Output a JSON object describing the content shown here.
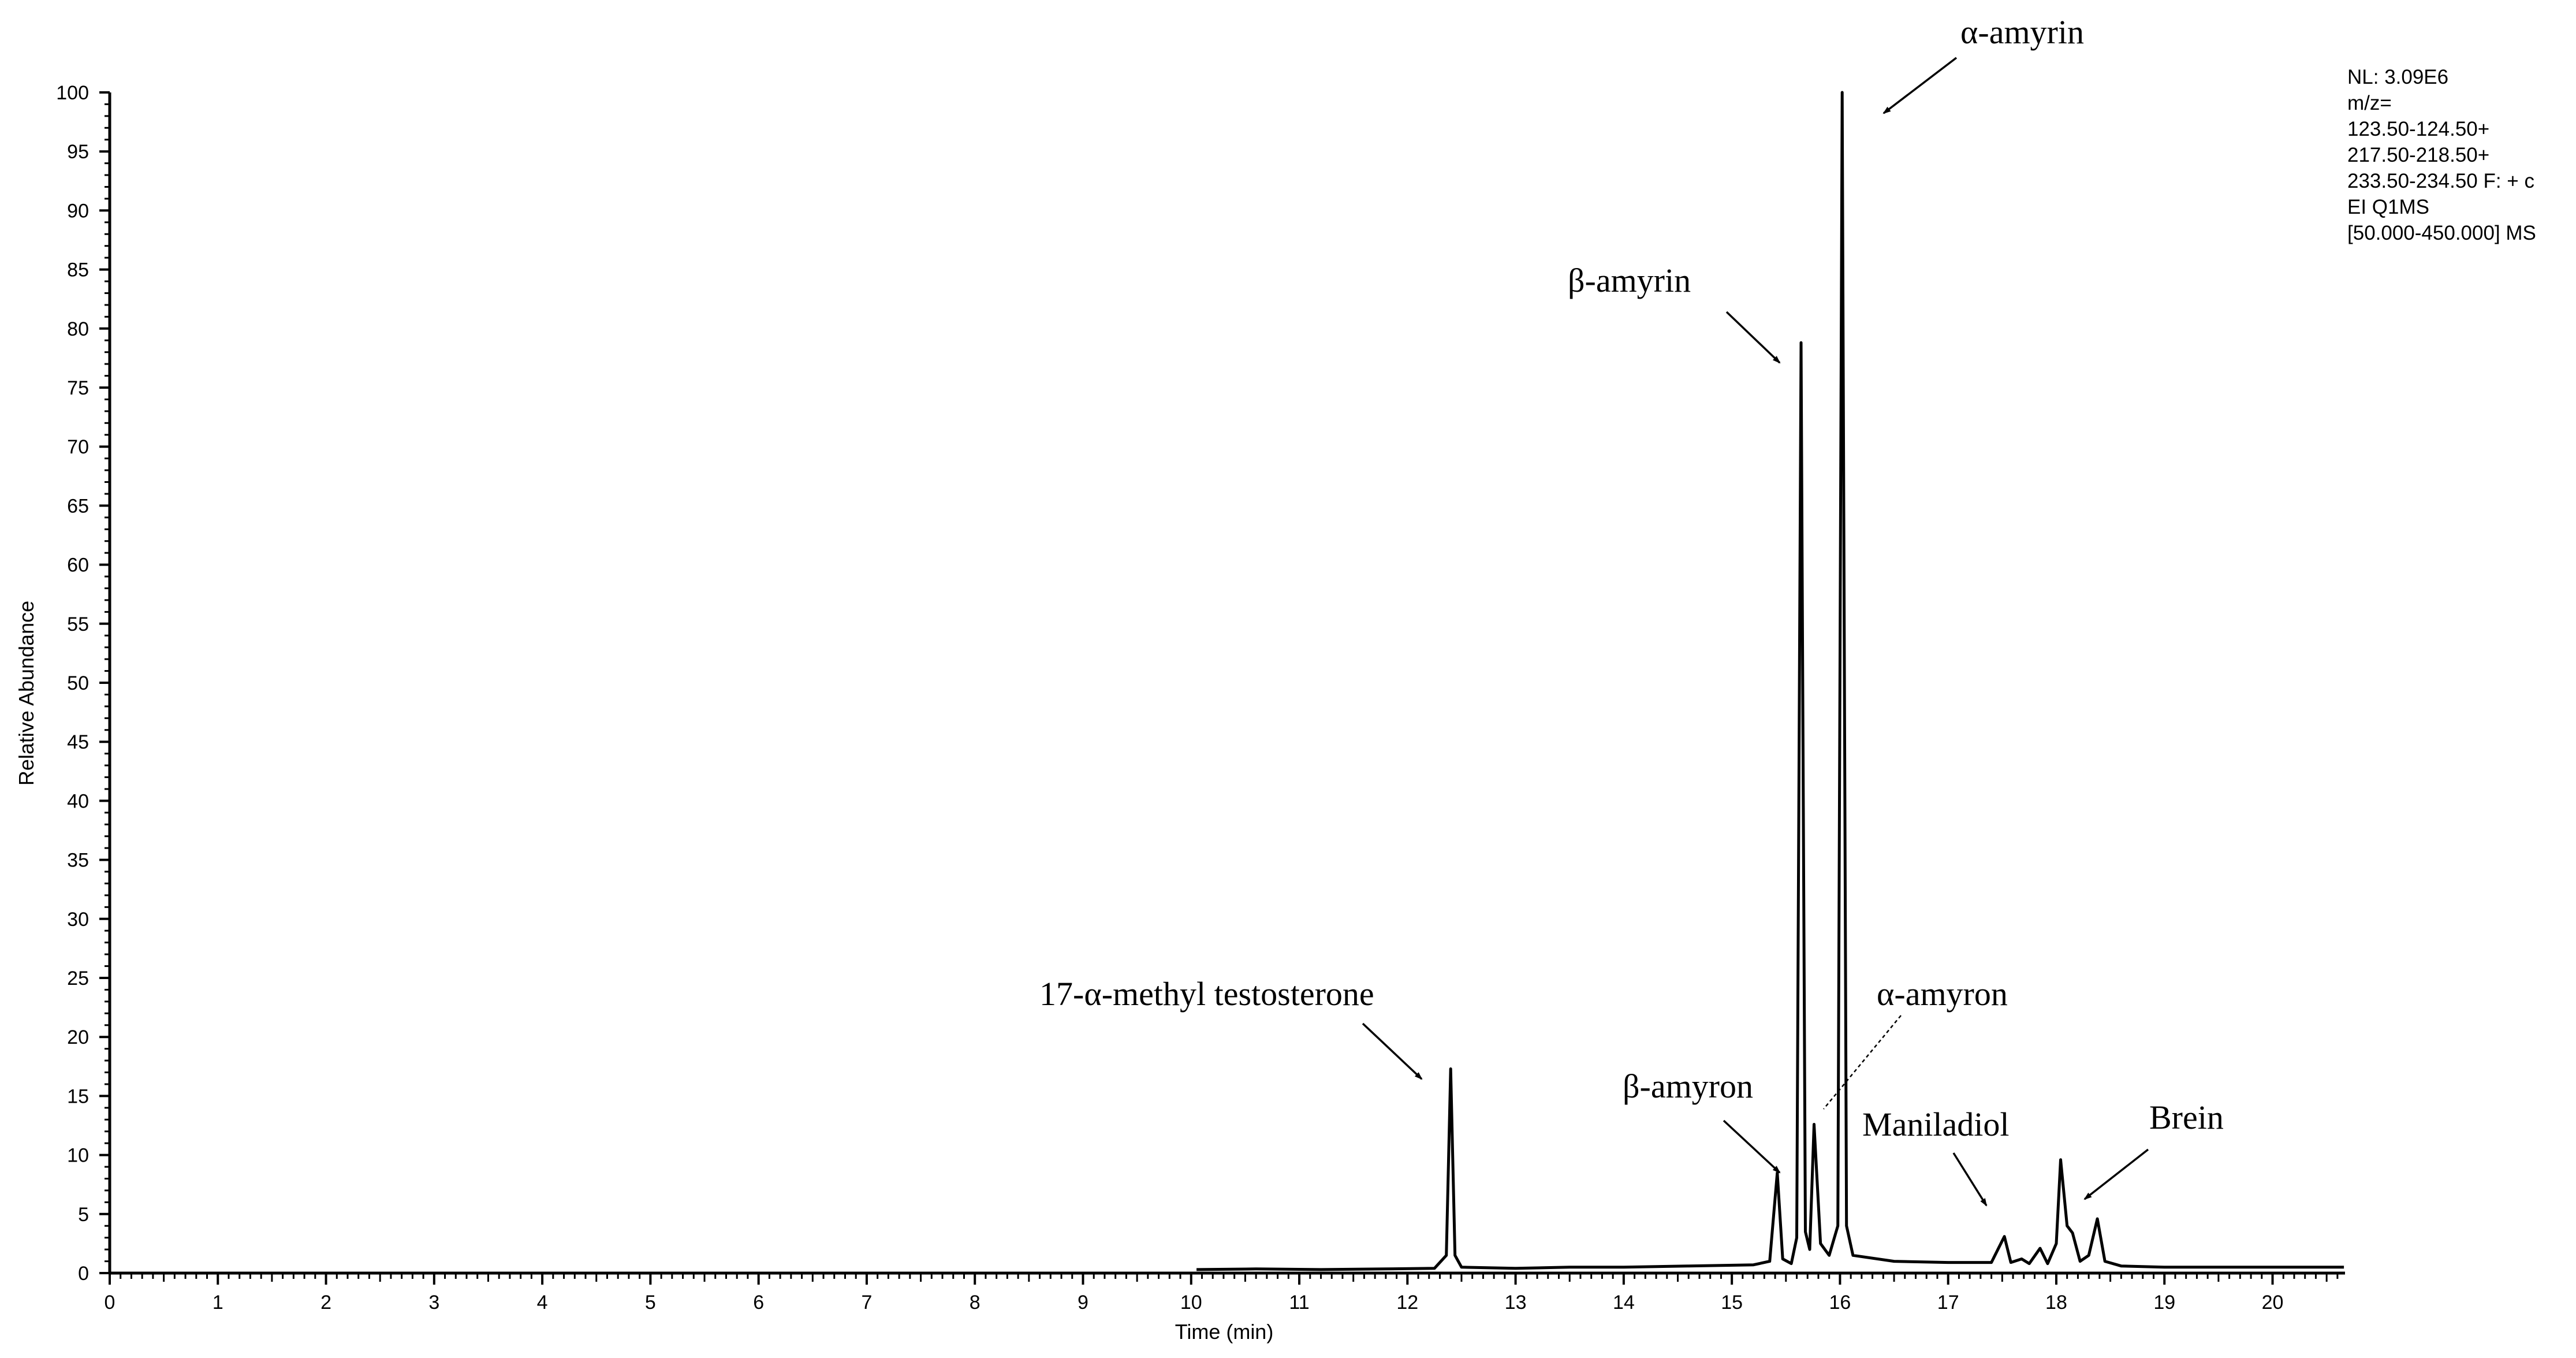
{
  "chart_data": {
    "type": "line",
    "xlabel": "Time (min)",
    "ylabel": "Relative Abundance",
    "xlim": [
      0,
      20.67
    ],
    "ylim": [
      0,
      100
    ],
    "x_ticks": [
      "0",
      "1",
      "2",
      "3",
      "4",
      "5",
      "6",
      "7",
      "8",
      "9",
      "10",
      "11",
      "12",
      "13",
      "14",
      "15",
      "16",
      "17",
      "18",
      "19",
      "20"
    ],
    "y_ticks": [
      "0",
      "5",
      "10",
      "15",
      "20",
      "25",
      "30",
      "35",
      "40",
      "45",
      "50",
      "55",
      "60",
      "65",
      "70",
      "75",
      "80",
      "85",
      "90",
      "95",
      "100"
    ],
    "info_lines": [
      "NL: 3.09E6",
      "m/z=",
      "123.50-124.50+",
      "217.50-218.50+",
      "233.50-234.50 F: + c",
      "EI Q1MS",
      "[50.000-450.000]  MS"
    ],
    "series_points": [
      [
        10.05,
        0.3
      ],
      [
        10.6,
        0.35
      ],
      [
        11.2,
        0.3
      ],
      [
        11.8,
        0.35
      ],
      [
        12.25,
        0.4
      ],
      [
        12.36,
        1.5
      ],
      [
        12.4,
        17.3
      ],
      [
        12.44,
        1.5
      ],
      [
        12.5,
        0.5
      ],
      [
        13.0,
        0.4
      ],
      [
        13.5,
        0.5
      ],
      [
        14.0,
        0.5
      ],
      [
        14.6,
        0.6
      ],
      [
        15.2,
        0.7
      ],
      [
        15.35,
        1.0
      ],
      [
        15.42,
        8.5
      ],
      [
        15.47,
        1.2
      ],
      [
        15.55,
        0.8
      ],
      [
        15.6,
        3.0
      ],
      [
        15.64,
        78.8
      ],
      [
        15.68,
        3.5
      ],
      [
        15.72,
        2.0
      ],
      [
        15.76,
        12.6
      ],
      [
        15.82,
        2.5
      ],
      [
        15.9,
        1.5
      ],
      [
        15.98,
        4.0
      ],
      [
        16.02,
        100
      ],
      [
        16.06,
        4.0
      ],
      [
        16.12,
        1.5
      ],
      [
        16.5,
        1.0
      ],
      [
        17.0,
        0.9
      ],
      [
        17.4,
        0.9
      ],
      [
        17.52,
        3.1
      ],
      [
        17.58,
        0.9
      ],
      [
        17.68,
        1.2
      ],
      [
        17.75,
        0.8
      ],
      [
        17.85,
        2.1
      ],
      [
        17.92,
        0.8
      ],
      [
        18.0,
        2.5
      ],
      [
        18.04,
        9.6
      ],
      [
        18.1,
        4.0
      ],
      [
        18.15,
        3.4
      ],
      [
        18.22,
        1.0
      ],
      [
        18.3,
        1.5
      ],
      [
        18.38,
        4.6
      ],
      [
        18.45,
        1.0
      ],
      [
        18.6,
        0.6
      ],
      [
        19.0,
        0.5
      ],
      [
        19.5,
        0.5
      ],
      [
        20.0,
        0.5
      ],
      [
        20.66,
        0.5
      ]
    ],
    "peaks": [
      {
        "label": "17-α-methyl testosterone",
        "x": 12.4,
        "y": 17.3
      },
      {
        "label": "β-amyron",
        "x": 15.42,
        "y": 8.5
      },
      {
        "label": "β-amyrin",
        "x": 15.64,
        "y": 78.8
      },
      {
        "label": "α-amyron",
        "x": 15.76,
        "y": 12.6
      },
      {
        "label": "α-amyrin",
        "x": 16.02,
        "y": 100
      },
      {
        "label": "Maniladiol",
        "x": 17.52,
        "y": 3.1
      },
      {
        "label": "Brein",
        "x": 18.04,
        "y": 9.6
      }
    ]
  }
}
